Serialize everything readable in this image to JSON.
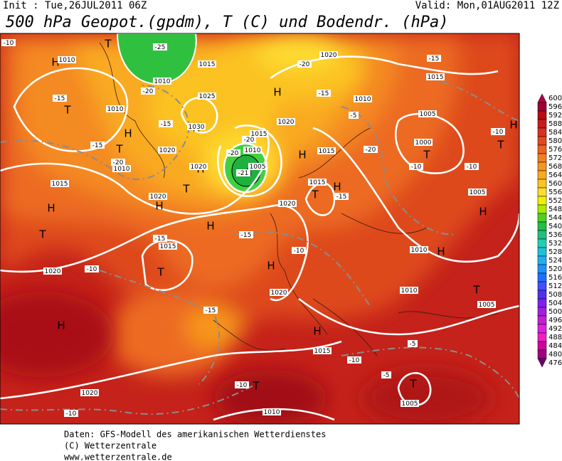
{
  "header": {
    "init": "Init : Tue,26JUL2011 06Z",
    "valid": "Valid: Mon,01AUG2011 12Z",
    "title": "500 hPa Geopot.(gpdm), T (C) und Bodendr. (hPa)"
  },
  "legend": {
    "levels": [
      600,
      596,
      592,
      588,
      584,
      580,
      576,
      572,
      568,
      564,
      560,
      556,
      552,
      548,
      544,
      540,
      536,
      532,
      528,
      524,
      520,
      516,
      512,
      508,
      504,
      500,
      496,
      492,
      488,
      484,
      480,
      476
    ],
    "colors": [
      "#b0004a",
      "#a00030",
      "#b80a14",
      "#c81c1c",
      "#d83020",
      "#e44820",
      "#ec6420",
      "#f27e20",
      "#f69420",
      "#f9aa20",
      "#fcc420",
      "#fede30",
      "#f0f000",
      "#a8ec00",
      "#50d020",
      "#20c040",
      "#20c080",
      "#20d0b0",
      "#20c0d8",
      "#20b0f0",
      "#2090ff",
      "#2070ff",
      "#4050ff",
      "#5030f0",
      "#8020f0",
      "#a020e0",
      "#c020d0",
      "#e020e0",
      "#f020c0",
      "#d000a0",
      "#a00080",
      "#700070"
    ]
  },
  "map": {
    "labels": [
      "H",
      "T",
      "T",
      "H",
      "H",
      "T",
      "H",
      "T",
      "H",
      "T",
      "H",
      "H",
      "H",
      "H",
      "H",
      "T",
      "T",
      "H",
      "T",
      "T",
      "H",
      "H",
      "H",
      "H",
      "T",
      "H",
      "T",
      "T",
      "T",
      "1010",
      "1010",
      "1015",
      "1025",
      "1010",
      "1010",
      "1020",
      "1020",
      "1030",
      "1015",
      "1020",
      "1015",
      "1020",
      "1020",
      "1020",
      "1015",
      "1010",
      "1005",
      "1020",
      "1015",
      "1015",
      "1020",
      "1015",
      "1010",
      "1005",
      "1000",
      "1005",
      "1010",
      "1010",
      "1005",
      "1015",
      "1020",
      "1010",
      "1005",
      "-10",
      "-15",
      "-15",
      "-15",
      "-20",
      "-20",
      "-20",
      "-15",
      "-15",
      "-5",
      "-20",
      "-10",
      "-10",
      "-10",
      "-15",
      "-15",
      "-10",
      "-15",
      "-10",
      "-15",
      "-10",
      "-5",
      "-5",
      "-10",
      "-10",
      "-25",
      "-20",
      "-20",
      "-21"
    ]
  },
  "footer": {
    "lines": [
      "Daten: GFS-Modell des amerikanischen Wetterdienstes",
      "(C) Wetterzentrale",
      "www.wetterzentrale.de"
    ]
  }
}
